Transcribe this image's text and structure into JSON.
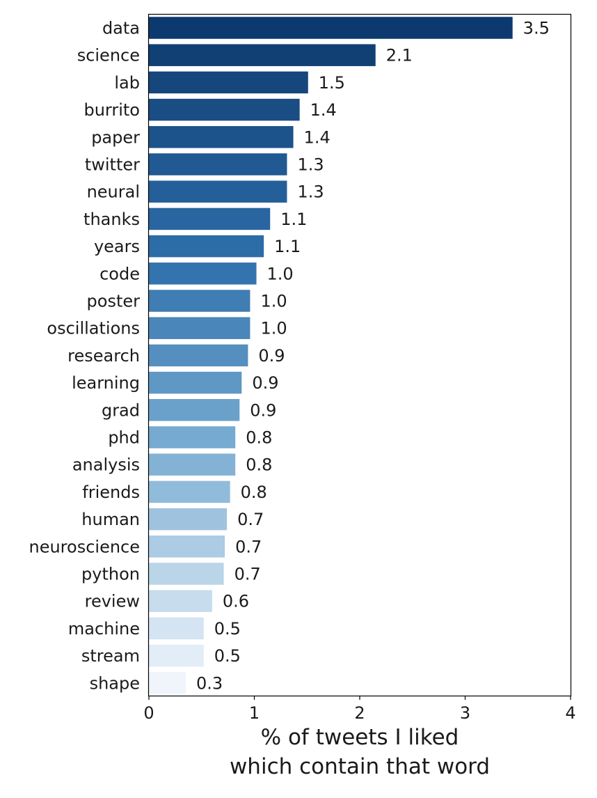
{
  "chart_data": {
    "type": "bar",
    "orientation": "horizontal",
    "categories": [
      "data",
      "science",
      "lab",
      "burrito",
      "paper",
      "twitter",
      "neural",
      "thanks",
      "years",
      "code",
      "poster",
      "oscillations",
      "research",
      "learning",
      "grad",
      "phd",
      "analysis",
      "friends",
      "human",
      "neuroscience",
      "python",
      "review",
      "machine",
      "stream",
      "shape"
    ],
    "values": [
      3.45,
      2.15,
      1.51,
      1.43,
      1.37,
      1.31,
      1.31,
      1.15,
      1.09,
      1.02,
      0.96,
      0.96,
      0.94,
      0.88,
      0.86,
      0.82,
      0.82,
      0.77,
      0.74,
      0.72,
      0.71,
      0.6,
      0.52,
      0.52,
      0.35
    ],
    "value_labels": [
      "3.5",
      "2.1",
      "1.5",
      "1.4",
      "1.4",
      "1.3",
      "1.3",
      "1.1",
      "1.1",
      "1.0",
      "1.0",
      "1.0",
      "0.9",
      "0.9",
      "0.9",
      "0.8",
      "0.8",
      "0.8",
      "0.7",
      "0.7",
      "0.7",
      "0.6",
      "0.5",
      "0.5",
      "0.3"
    ],
    "xlabel": [
      "% of tweets I liked",
      "which contain that word"
    ],
    "ylabel": "",
    "xlim": [
      0,
      4
    ],
    "xticks": [
      0,
      1,
      2,
      3,
      4
    ],
    "xtick_labels": [
      "0",
      "1",
      "2",
      "3",
      "4"
    ],
    "grid": false,
    "colormap": "Blues",
    "color_start": "#0d3a6e",
    "color_end": "#f0f5fc"
  }
}
